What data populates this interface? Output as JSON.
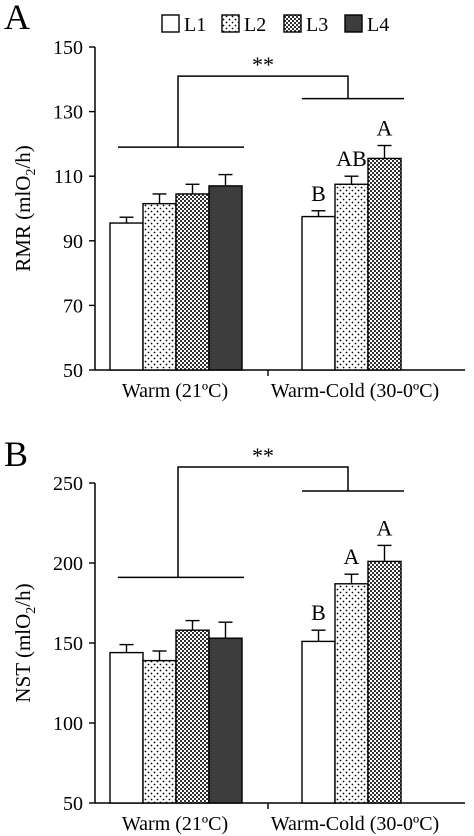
{
  "legend": {
    "entries": [
      "L1",
      "L2",
      "L3",
      "L4"
    ],
    "patterns": [
      "white",
      "sparse-dots",
      "checker",
      "dark"
    ]
  },
  "colors": {
    "l4_fill": "#3d3d3d",
    "axis": "#000000",
    "bar_stroke": "#000000"
  },
  "chart_data": [
    {
      "type": "bar",
      "panel_label": "A",
      "ylabel_main": "RMR (mlO",
      "ylabel_sub": "2",
      "ylabel_tail": "/h)",
      "ylim": [
        50,
        150
      ],
      "yticks": [
        50,
        70,
        90,
        110,
        130,
        150
      ],
      "categories": [
        "Warm (21ºC)",
        "Warm-Cold (30-0ºC)"
      ],
      "series": [
        {
          "name": "L1",
          "values": [
            95.5,
            97.5
          ],
          "errors": [
            1.8,
            1.8
          ]
        },
        {
          "name": "L2",
          "values": [
            101.5,
            107.5
          ],
          "errors": [
            3.0,
            2.5
          ]
        },
        {
          "name": "L3",
          "values": [
            104.5,
            115.5
          ],
          "errors": [
            3.0,
            4.0
          ]
        },
        {
          "name": "L4",
          "values": [
            107.0,
            null
          ],
          "errors": [
            3.5,
            null
          ]
        }
      ],
      "letters": [
        {
          "group": 1,
          "series": 0,
          "text": "B"
        },
        {
          "group": 1,
          "series": 1,
          "text": "AB"
        },
        {
          "group": 1,
          "series": 2,
          "text": "A"
        }
      ],
      "group_bar_levels": [
        119,
        134
      ],
      "top_bracket_level": 141,
      "significance": "**"
    },
    {
      "type": "bar",
      "panel_label": "B",
      "ylabel_main": "NST (mlO",
      "ylabel_sub": "2",
      "ylabel_tail": "/h)",
      "ylim": [
        50,
        250
      ],
      "yticks": [
        50,
        100,
        150,
        200,
        250
      ],
      "categories": [
        "Warm (21ºC)",
        "Warm-Cold (30-0ºC)"
      ],
      "series": [
        {
          "name": "L1",
          "values": [
            144,
            151
          ],
          "errors": [
            5,
            7
          ]
        },
        {
          "name": "L2",
          "values": [
            139,
            187
          ],
          "errors": [
            6,
            6
          ]
        },
        {
          "name": "L3",
          "values": [
            158,
            201
          ],
          "errors": [
            6,
            10
          ]
        },
        {
          "name": "L4",
          "values": [
            153,
            null
          ],
          "errors": [
            10,
            null
          ]
        }
      ],
      "letters": [
        {
          "group": 1,
          "series": 0,
          "text": "B"
        },
        {
          "group": 1,
          "series": 1,
          "text": "A"
        },
        {
          "group": 1,
          "series": 2,
          "text": "A"
        }
      ],
      "group_bar_levels": [
        191,
        245
      ],
      "top_bracket_level": 260,
      "significance": "**"
    }
  ]
}
